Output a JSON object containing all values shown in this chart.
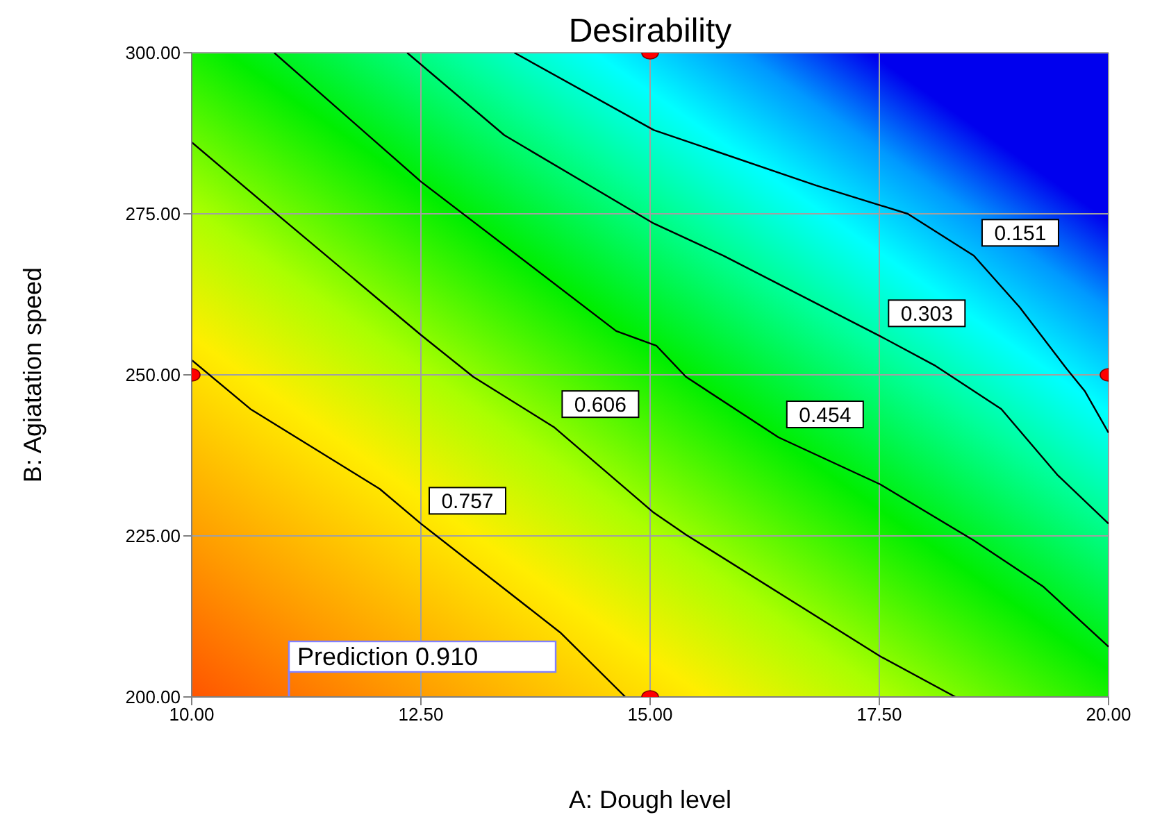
{
  "chart_data": {
    "type": "line",
    "title": "Desirability",
    "xlabel": "A: Dough level",
    "ylabel": "B: Agiatation speed",
    "xlim": [
      10,
      20
    ],
    "ylim": [
      200,
      300
    ],
    "xticks": [
      {
        "value": 10,
        "label": "10.00"
      },
      {
        "value": 12.5,
        "label": "12.50"
      },
      {
        "value": 15,
        "label": "15.00"
      },
      {
        "value": 17.5,
        "label": "17.50"
      },
      {
        "value": 20,
        "label": "20.00"
      }
    ],
    "yticks": [
      {
        "value": 200,
        "label": "200.00"
      },
      {
        "value": 225,
        "label": "225.00"
      },
      {
        "value": 250,
        "label": "250.00"
      },
      {
        "value": 275,
        "label": "275.00"
      },
      {
        "value": 300,
        "label": "300.00"
      }
    ],
    "grid": true,
    "legend": false,
    "series": [
      {
        "name": "0.151",
        "color": "#000000",
        "x": [
          13.52,
          15.04,
          16.81,
          17.81,
          18.53,
          19.03,
          19.54,
          19.74,
          20
        ],
        "values": [
          300,
          288,
          279.4,
          275,
          268.5,
          260.5,
          251,
          247.5,
          241
        ]
      },
      {
        "name": "0.303",
        "color": "#000000",
        "x": [
          12.35,
          13.41,
          15.04,
          15.8,
          17.51,
          18.1,
          18.83,
          19.44,
          20
        ],
        "values": [
          300,
          287.2,
          273.5,
          268.5,
          256,
          251.5,
          244.7,
          234.5,
          226.9
        ]
      },
      {
        "name": "0.454",
        "color": "#000000",
        "x": [
          10.9,
          12.5,
          14.63,
          15.07,
          15.39,
          16.4,
          17.51,
          18.53,
          19.29,
          20
        ],
        "values": [
          300,
          280,
          256.8,
          254.5,
          249.7,
          240.3,
          233,
          224.3,
          217.1,
          207.8
        ]
      },
      {
        "name": "0.606",
        "color": "#000000",
        "x": [
          10,
          10.99,
          12.5,
          13.07,
          13.95,
          15.04,
          15.39,
          17.51,
          18.33
        ],
        "values": [
          286.1,
          274.2,
          256.2,
          249.7,
          241.9,
          228.6,
          225.2,
          206.3,
          200
        ]
      },
      {
        "name": "0.757",
        "color": "#000000",
        "x": [
          10,
          10.64,
          12.05,
          12.5,
          14.02,
          14.73
        ],
        "values": [
          252.3,
          244.7,
          232.3,
          226.9,
          210,
          200
        ]
      },
      {
        "type": "scatter",
        "color": "#ff0000",
        "x": [
          15,
          10,
          20,
          15
        ],
        "values": [
          300,
          250,
          250,
          200
        ]
      }
    ],
    "annotations": [
      "Prediction 0.910"
    ]
  }
}
